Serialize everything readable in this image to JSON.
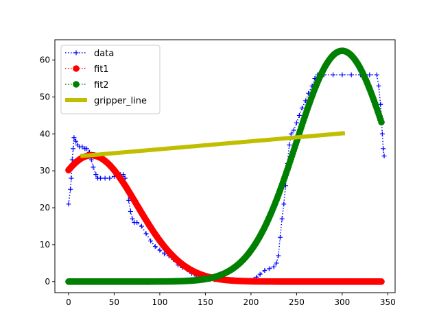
{
  "chart_data": {
    "type": "line",
    "xlim": [
      -15,
      358
    ],
    "ylim": [
      -3,
      65.5
    ],
    "x_ticks": [
      0,
      50,
      100,
      150,
      200,
      250,
      300,
      350
    ],
    "y_ticks": [
      0,
      10,
      20,
      30,
      40,
      50,
      60
    ],
    "grid": false,
    "legend_position": "top-left",
    "series": [
      {
        "name": "data",
        "color": "#0000ff",
        "linestyle": "dotted",
        "marker": "+",
        "points": [
          [
            0,
            21
          ],
          [
            2,
            25
          ],
          [
            3,
            28
          ],
          [
            4,
            33
          ],
          [
            5,
            36
          ],
          [
            6,
            39
          ],
          [
            8,
            38
          ],
          [
            10,
            37
          ],
          [
            12,
            36.5
          ],
          [
            15,
            36.5
          ],
          [
            18,
            36
          ],
          [
            20,
            36
          ],
          [
            23,
            35
          ],
          [
            25,
            33
          ],
          [
            27,
            31
          ],
          [
            30,
            29
          ],
          [
            32,
            28
          ],
          [
            35,
            28
          ],
          [
            40,
            28
          ],
          [
            45,
            28
          ],
          [
            50,
            28.5
          ],
          [
            53,
            29
          ],
          [
            57,
            29
          ],
          [
            60,
            29
          ],
          [
            62,
            28
          ],
          [
            64,
            25
          ],
          [
            66,
            22
          ],
          [
            68,
            19
          ],
          [
            70,
            17
          ],
          [
            72,
            16
          ],
          [
            75,
            16
          ],
          [
            80,
            15
          ],
          [
            85,
            13
          ],
          [
            90,
            11
          ],
          [
            95,
            9.5
          ],
          [
            100,
            8.5
          ],
          [
            105,
            7.5
          ],
          [
            110,
            7
          ],
          [
            115,
            6
          ],
          [
            120,
            4.5
          ],
          [
            125,
            3.8
          ],
          [
            130,
            3.2
          ],
          [
            135,
            2.2
          ],
          [
            140,
            1.5
          ],
          [
            145,
            1.1
          ],
          [
            150,
            0.8
          ],
          [
            155,
            0.6
          ],
          [
            160,
            0.5
          ],
          [
            165,
            0.4
          ],
          [
            170,
            0.3
          ],
          [
            175,
            0.2
          ],
          [
            180,
            0.1
          ],
          [
            185,
            0
          ],
          [
            190,
            0
          ],
          [
            195,
            0
          ],
          [
            200,
            0
          ],
          [
            203,
            0.5
          ],
          [
            206,
            1.2
          ],
          [
            210,
            2
          ],
          [
            215,
            3
          ],
          [
            220,
            3.5
          ],
          [
            225,
            4
          ],
          [
            228,
            5
          ],
          [
            230,
            7
          ],
          [
            232,
            12
          ],
          [
            234,
            17
          ],
          [
            236,
            21
          ],
          [
            238,
            26
          ],
          [
            240,
            32
          ],
          [
            242,
            37
          ],
          [
            244,
            40
          ],
          [
            247,
            41
          ],
          [
            250,
            43
          ],
          [
            253,
            45
          ],
          [
            256,
            47
          ],
          [
            260,
            49
          ],
          [
            263,
            51
          ],
          [
            267,
            53
          ],
          [
            270,
            55
          ],
          [
            273,
            56
          ],
          [
            280,
            56
          ],
          [
            290,
            56
          ],
          [
            300,
            56
          ],
          [
            310,
            56
          ],
          [
            320,
            56
          ],
          [
            330,
            56
          ],
          [
            338,
            56
          ],
          [
            340,
            53
          ],
          [
            342,
            48
          ],
          [
            343,
            44
          ],
          [
            344,
            40
          ],
          [
            345,
            36
          ],
          [
            346,
            34
          ]
        ]
      },
      {
        "name": "fit1",
        "color": "#ff0000",
        "linestyle": "dotted",
        "marker": "o",
        "function": "gaussian",
        "params": {
          "a": 34.2,
          "mu": 25,
          "sigma": 50
        },
        "x_range": [
          0,
          343
        ]
      },
      {
        "name": "fit2",
        "color": "#008000",
        "linestyle": "dotted",
        "marker": "o",
        "function": "gaussian",
        "params": {
          "a": 62.5,
          "mu": 300,
          "sigma": 50
        },
        "x_range": [
          0,
          343
        ]
      },
      {
        "name": "gripper_line",
        "color": "#bfbf00",
        "linestyle": "solid",
        "marker": "none",
        "points": [
          [
            13,
            34
          ],
          [
            303,
            40.2
          ]
        ]
      }
    ]
  }
}
